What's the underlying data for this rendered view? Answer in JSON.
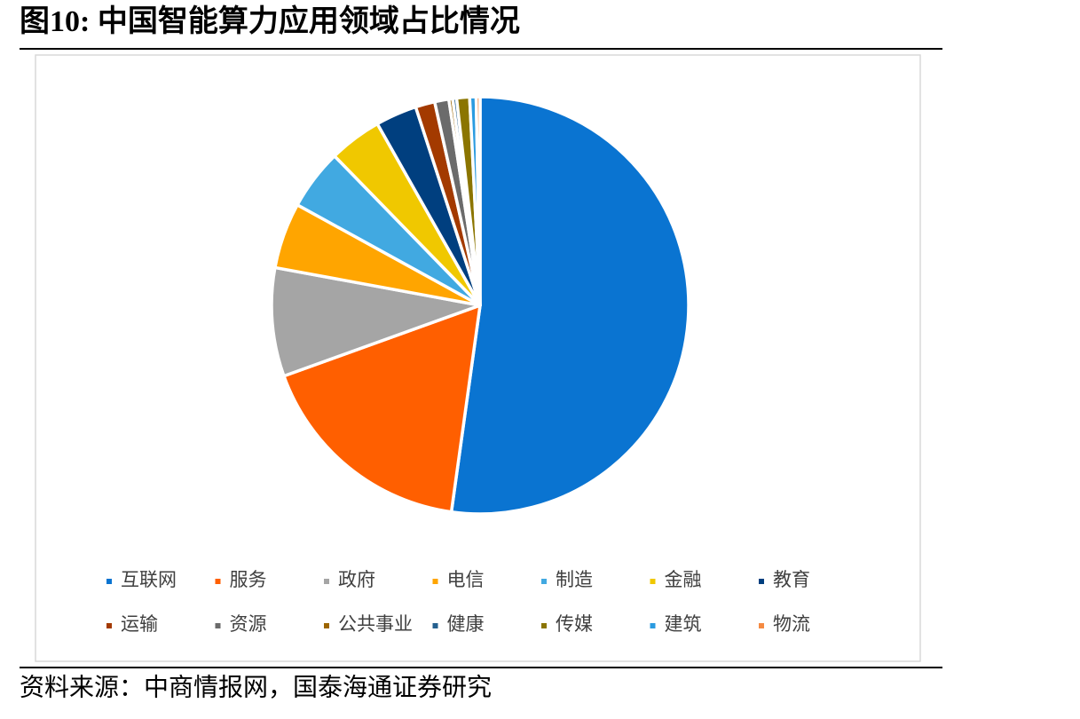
{
  "chart_data": {
    "type": "pie",
    "title": "图10:  中国智能算力应用领域占比情况",
    "source": "资料来源：中商情报网，国泰海通证券研究",
    "categories": [
      "互联网",
      "服务",
      "政府",
      "电信",
      "制造",
      "金融",
      "教育",
      "运输",
      "资源",
      "公共事业",
      "健康",
      "传媒",
      "建筑",
      "物流"
    ],
    "values": [
      52.2,
      17.3,
      8.4,
      5.1,
      4.7,
      4.1,
      3.2,
      1.5,
      1.1,
      0.3,
      0.3,
      1.0,
      0.5,
      0.3
    ],
    "colors": [
      "#0a74d1",
      "#ff5f00",
      "#a5a5a5",
      "#ffa500",
      "#41a9e1",
      "#f0c800",
      "#003f7f",
      "#a33a00",
      "#6b6b6b",
      "#9c6500",
      "#25608f",
      "#8b7500",
      "#2b9be0",
      "#f58a42"
    ],
    "legend": "bottom"
  }
}
